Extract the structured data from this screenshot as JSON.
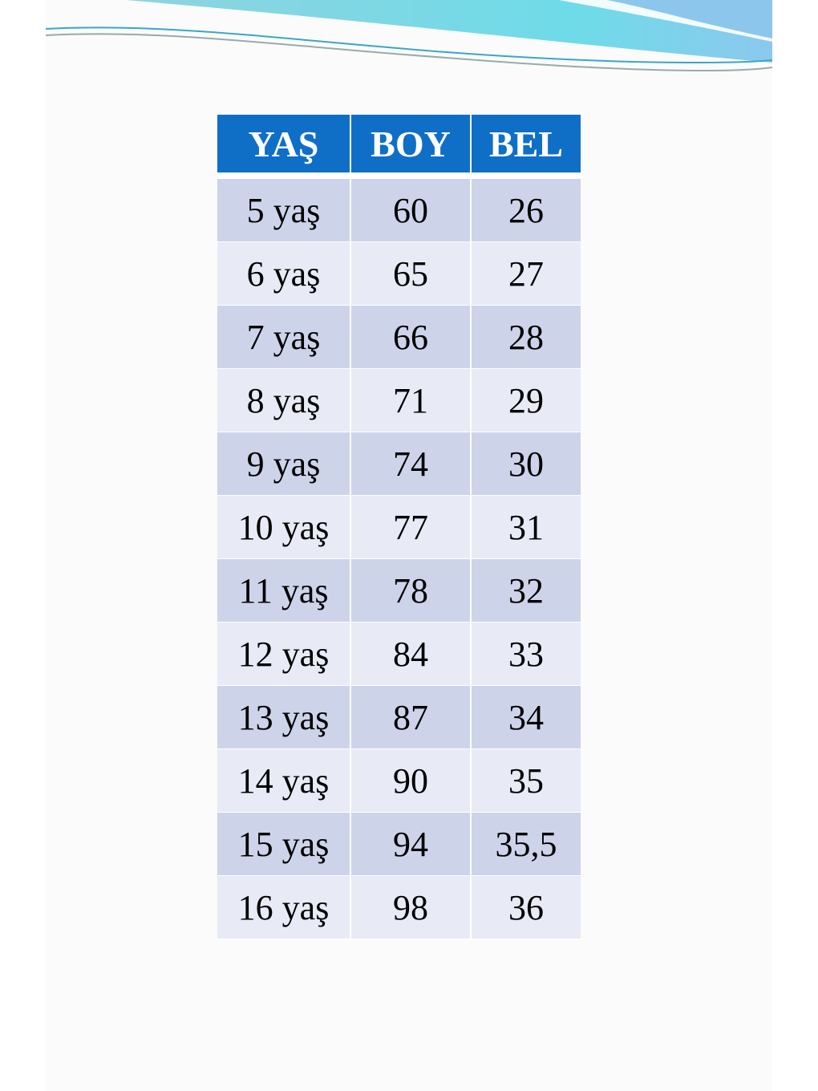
{
  "table": {
    "headers": [
      "YAŞ",
      "BOY",
      "BEL"
    ],
    "rows": [
      [
        "5 yaş",
        "60",
        "26"
      ],
      [
        "6 yaş",
        "65",
        "27"
      ],
      [
        "7 yaş",
        "66",
        "28"
      ],
      [
        "8 yaş",
        "71",
        "29"
      ],
      [
        "9 yaş",
        "74",
        "30"
      ],
      [
        "10 yaş",
        "77",
        "31"
      ],
      [
        "11 yaş",
        "78",
        "32"
      ],
      [
        "12 yaş",
        "84",
        "33"
      ],
      [
        "13 yaş",
        "87",
        "34"
      ],
      [
        "14 yaş",
        "90",
        "35"
      ],
      [
        "15 yaş",
        "94",
        "35,5"
      ],
      [
        "16 yaş",
        "98",
        "36"
      ]
    ]
  },
  "colors": {
    "header": "#0f6fc6",
    "row_dark": "#cdd4ea",
    "row_light": "#e8ebf5"
  }
}
